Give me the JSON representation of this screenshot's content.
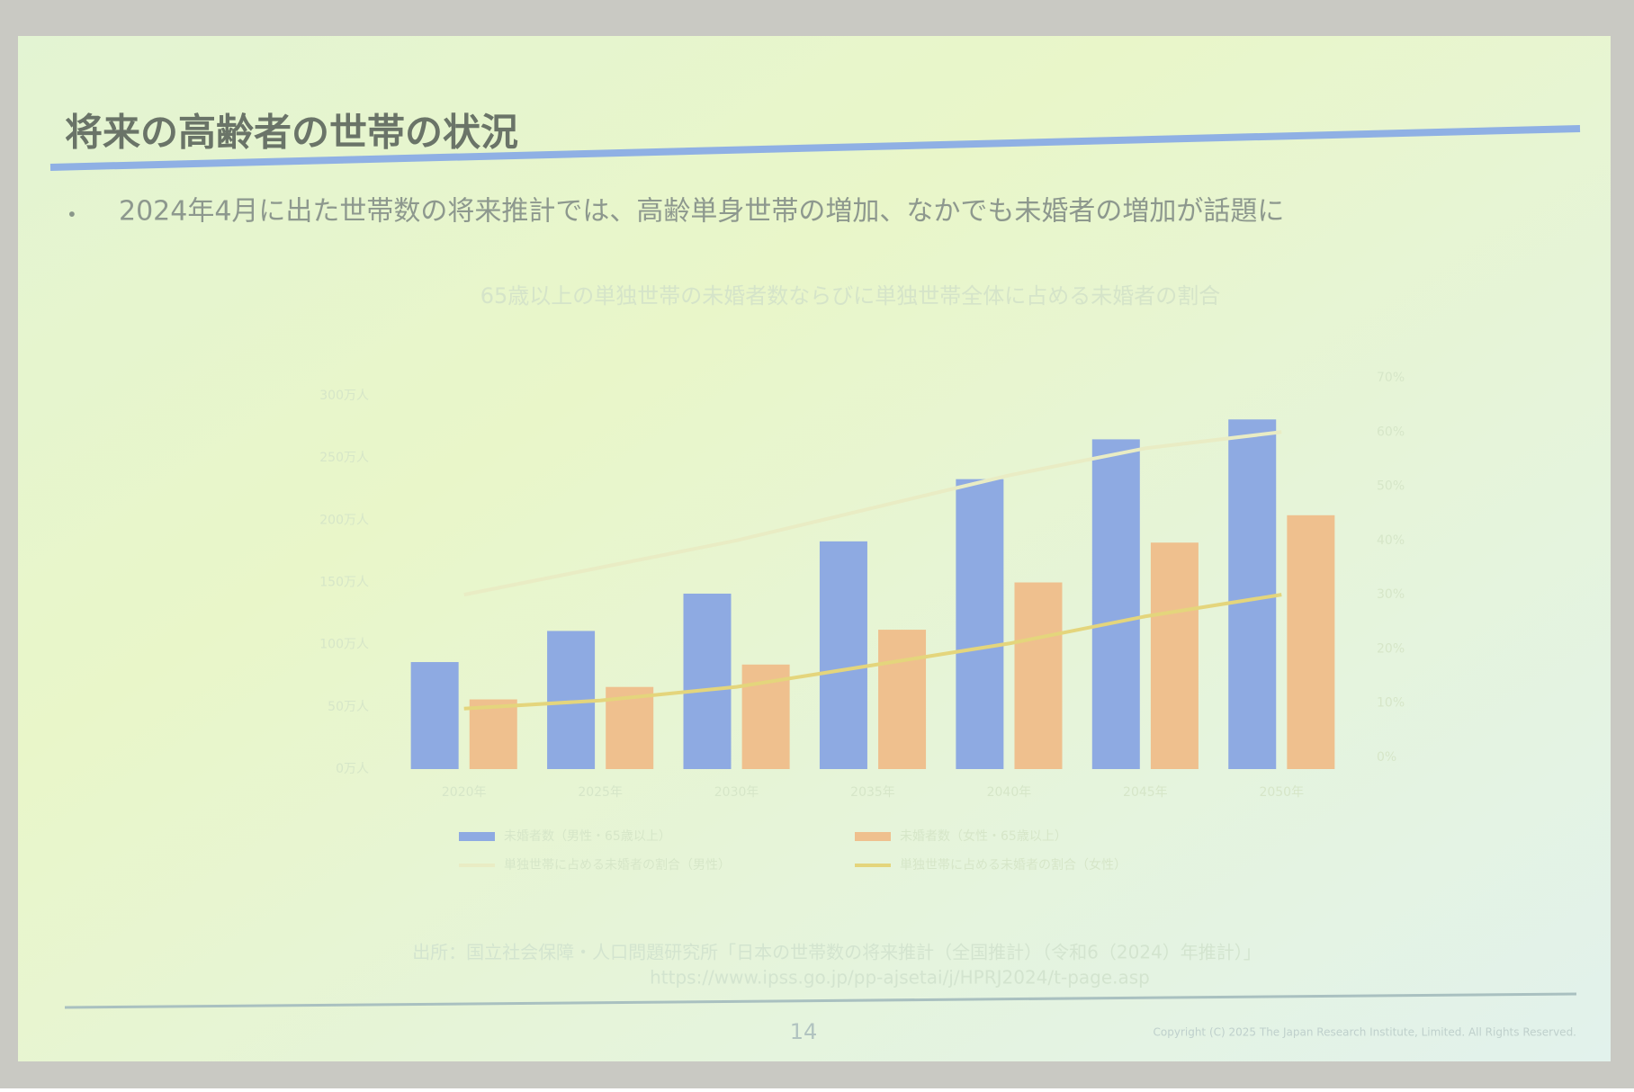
{
  "slide": {
    "title": "将来の高齢者の世帯の状況",
    "bullet": "2024年4月に出た世帯数の将来推計では、高齢単身世帯の増加、なかでも未婚者の増加が話題に",
    "page": "14",
    "copyright": "Copyright (C) 2025 The Japan Research Institute, Limited. All Rights Reserved."
  },
  "chart_data": {
    "type": "bar",
    "title": "65歳以上の単独世帯の未婚者数ならびに単独世帯全体に占める未婚者の割合",
    "source": "出所：国立社会保障・人口問題研究所「日本の世帯数の将来推計（全国推計）（令和6（2024）年推計）」",
    "url": "https://www.ipss.go.jp/pp-ajsetai/j/HPRJ2024/t-page.asp",
    "categories": [
      "2020年",
      "2025年",
      "2030年",
      "2035年",
      "2040年",
      "2045年",
      "2050年"
    ],
    "series": [
      {
        "name": "未婚者数（男性・65歳以上）",
        "type": "bar",
        "color": "#8eaae2",
        "values": [
          86,
          111,
          141,
          183,
          233,
          265,
          281
        ]
      },
      {
        "name": "未婚者数（女性・65歳以上）",
        "type": "bar",
        "color": "#efc08e",
        "values": [
          56,
          66,
          84,
          112,
          150,
          182,
          204
        ]
      },
      {
        "name": "単独世帯に占める未婚者の割合（男性）",
        "type": "line",
        "axis": "y2",
        "color": "#e9ecc4",
        "values": [
          30,
          35,
          40,
          46,
          52,
          57,
          60
        ]
      },
      {
        "name": "単独世帯に占める未婚者の割合（女性）",
        "type": "line",
        "axis": "y2",
        "color": "#e4d57c",
        "values": [
          9,
          10.5,
          13,
          17,
          21,
          26,
          30
        ]
      }
    ],
    "ylim": [
      0,
      300
    ],
    "yticks": [
      {
        "value": 0,
        "label": "0万人"
      },
      {
        "value": 50,
        "label": "50万人"
      },
      {
        "value": 100,
        "label": "100万人"
      },
      {
        "value": 150,
        "label": "150万人"
      },
      {
        "value": 200,
        "label": "200万人"
      },
      {
        "value": 250,
        "label": "250万人"
      },
      {
        "value": 300,
        "label": "300万人"
      }
    ],
    "y2lim": [
      0,
      70
    ],
    "y2ticks": [
      {
        "value": 0,
        "label": "0%"
      },
      {
        "value": 10,
        "label": "10%"
      },
      {
        "value": 20,
        "label": "20%"
      },
      {
        "value": 30,
        "label": "30%"
      },
      {
        "value": 40,
        "label": "40%"
      },
      {
        "value": 50,
        "label": "50%"
      },
      {
        "value": 60,
        "label": "60%"
      },
      {
        "value": 70,
        "label": "70%"
      }
    ]
  }
}
